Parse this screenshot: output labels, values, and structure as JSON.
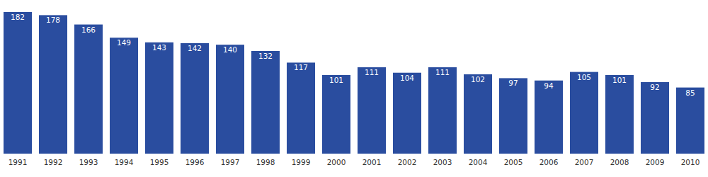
{
  "chart_data": {
    "type": "bar",
    "categories": [
      "1991",
      "1992",
      "1993",
      "1994",
      "1995",
      "1996",
      "1997",
      "1998",
      "1999",
      "2000",
      "2001",
      "2002",
      "2003",
      "2004",
      "2005",
      "2006",
      "2007",
      "2008",
      "2009",
      "2010"
    ],
    "values": [
      182,
      178,
      166,
      149,
      143,
      142,
      140,
      132,
      117,
      101,
      111,
      104,
      111,
      102,
      97,
      94,
      105,
      101,
      92,
      85
    ],
    "color": "#2a4d9f",
    "ylim": [
      0,
      182
    ],
    "data_labels": true,
    "tick_labels": "x",
    "grid": false
  }
}
